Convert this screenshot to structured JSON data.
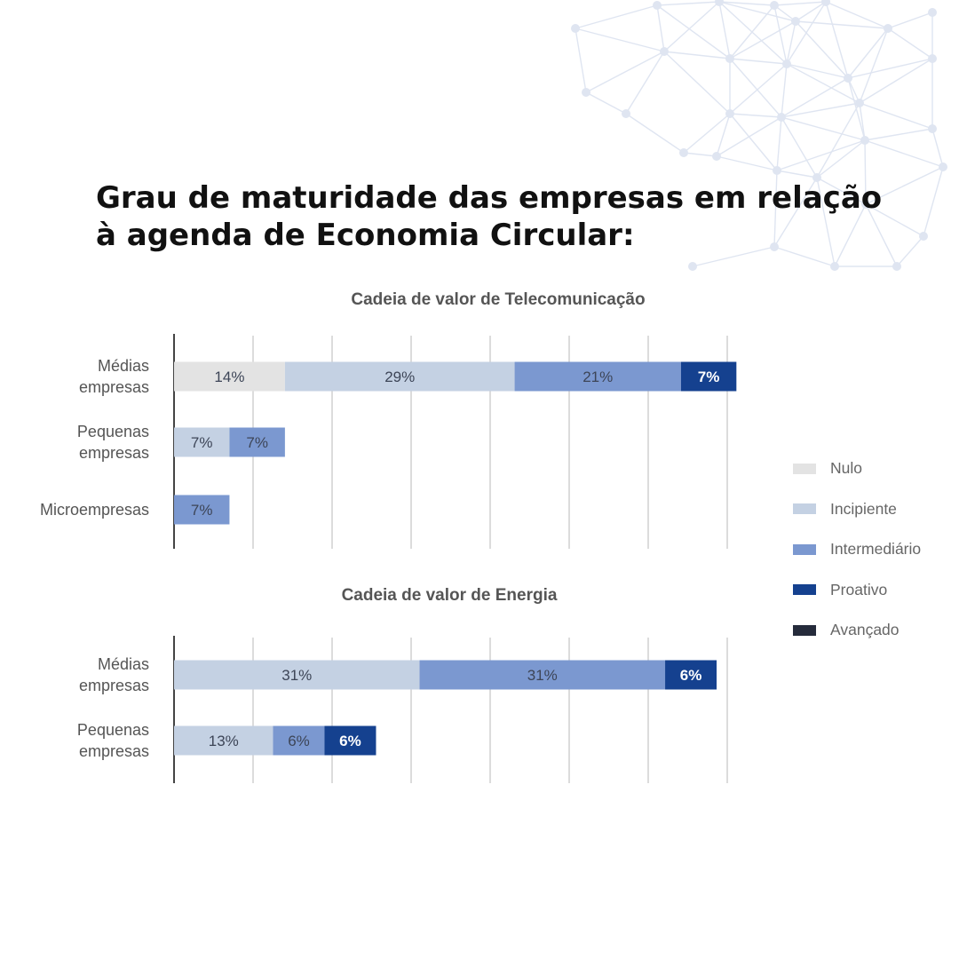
{
  "title": "Grau de maturidade das empresas em relação à agenda de Economia Circular:",
  "colors": {
    "Nulo": "#e3e3e3",
    "Incipiente": "#c4d1e3",
    "Intermediário": "#7b98d0",
    "Proativo": "#15418f",
    "Avançado": "#252b3b",
    "grid": "#dcdcdc",
    "axis": "#444444",
    "network": "#dfe5f1"
  },
  "legend": [
    {
      "label": "Nulo",
      "key": "Nulo"
    },
    {
      "label": "Incipiente",
      "key": "Incipiente"
    },
    {
      "label": "Intermediário",
      "key": "Intermediário"
    },
    {
      "label": "Proativo",
      "key": "Proativo"
    },
    {
      "label": "Avançado",
      "key": "Avançado"
    }
  ],
  "chart_data": [
    {
      "type": "bar",
      "orientation": "horizontal",
      "stacked": true,
      "title": "Cadeia de valor de Telecomunicação",
      "categories": [
        "Médias\nempresas",
        "Pequenas\nempresas",
        "Microempresas"
      ],
      "series": [
        {
          "name": "Nulo",
          "values": [
            14,
            0,
            0
          ],
          "labels": [
            "14%",
            "",
            ""
          ]
        },
        {
          "name": "Incipiente",
          "values": [
            29,
            7,
            0
          ],
          "labels": [
            "29%",
            "7%",
            ""
          ]
        },
        {
          "name": "Intermediário",
          "values": [
            21,
            7,
            7
          ],
          "labels": [
            "21%",
            "7%",
            "7%"
          ]
        },
        {
          "name": "Proativo",
          "values": [
            7,
            0,
            0
          ],
          "labels": [
            "7%",
            "",
            ""
          ]
        },
        {
          "name": "Avançado",
          "values": [
            0,
            0,
            0
          ],
          "labels": [
            "",
            "",
            ""
          ]
        }
      ],
      "xlim": [
        0,
        70
      ],
      "grid": true,
      "legend_position": "right"
    },
    {
      "type": "bar",
      "orientation": "horizontal",
      "stacked": true,
      "title": "Cadeia de valor de Energia",
      "categories": [
        "Médias\nempresas",
        "Pequenas\nempresas"
      ],
      "series": [
        {
          "name": "Nulo",
          "values": [
            0,
            0
          ],
          "labels": [
            "",
            ""
          ]
        },
        {
          "name": "Incipiente",
          "values": [
            31,
            12.5
          ],
          "labels": [
            "31%",
            "13%"
          ]
        },
        {
          "name": "Intermediário",
          "values": [
            31,
            6.5
          ],
          "labels": [
            "31%",
            "6%"
          ]
        },
        {
          "name": "Proativo",
          "values": [
            6.5,
            6.5
          ],
          "labels": [
            "6%",
            "6%"
          ]
        },
        {
          "name": "Avançado",
          "values": [
            0,
            0
          ],
          "labels": [
            "",
            ""
          ]
        }
      ],
      "xlim": [
        0,
        70
      ],
      "grid": true,
      "legend_position": "right"
    }
  ]
}
